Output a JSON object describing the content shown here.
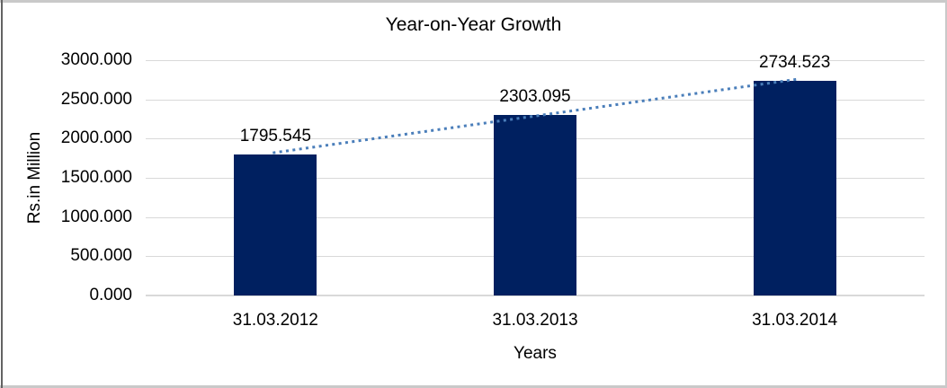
{
  "chart_data": {
    "type": "bar",
    "title": "Year-on-Year Growth",
    "categories": [
      "31.03.2012",
      "31.03.2013",
      "31.03.2014"
    ],
    "values": [
      1795.545,
      2303.095,
      2734.523
    ],
    "value_labels": [
      "1795.545",
      "2303.095",
      "2734.523"
    ],
    "xlabel": "Years",
    "ylabel": "Rs.in Million",
    "ylim": [
      0,
      3000
    ],
    "ytick_step": 500,
    "ytick_labels": [
      "3000.000",
      "2500.000",
      "2000.000",
      "1500.000",
      "1000.000",
      "500.000",
      "0.000"
    ],
    "grid": true,
    "legend": "none",
    "bar_color": "#002060",
    "gridline_color": "#d9d9d9",
    "trendline": {
      "type": "linear",
      "style": "dotted",
      "color": "#4a7eba"
    },
    "frame_border_color": "#c9c9c9",
    "frame_border_left_color": "#636363"
  }
}
